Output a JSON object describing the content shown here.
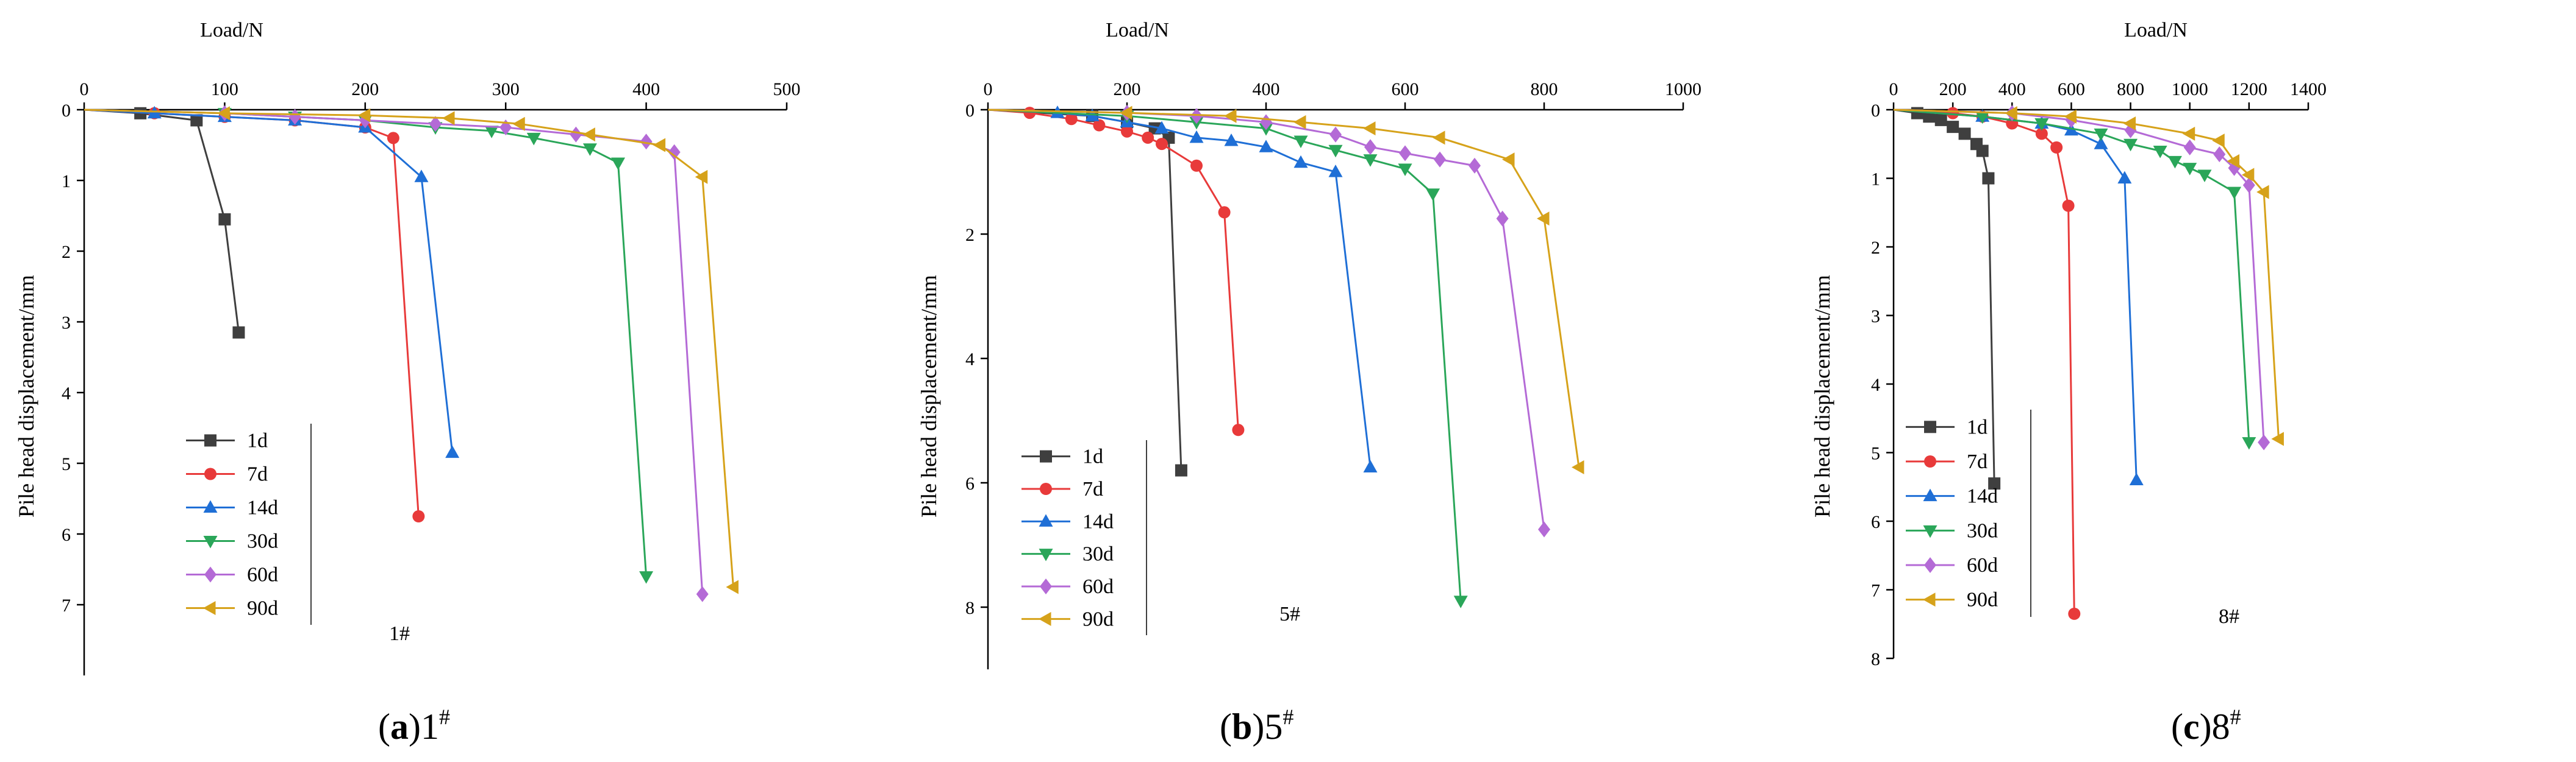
{
  "chart_data": [
    {
      "type": "line",
      "panel_label": "(a)",
      "panel_pile": "1",
      "title_sup": "#",
      "plot_marker": "1#",
      "xlabel": "Load/N",
      "ylabel": "Pile head displacement/mm",
      "xlim": [
        0,
        500
      ],
      "ylim": [
        0,
        8
      ],
      "xticks": [
        0,
        100,
        200,
        300,
        400,
        500
      ],
      "yticks": [
        0,
        1,
        2,
        3,
        4,
        5,
        6,
        7
      ],
      "y_inverted": true,
      "legend_position": "bottom-left",
      "series": [
        {
          "name": "1d",
          "x": [
            0,
            40,
            80,
            100,
            110
          ],
          "y": [
            0,
            0.05,
            0.15,
            1.55,
            3.15
          ]
        },
        {
          "name": "7d",
          "x": [
            0,
            50,
            100,
            150,
            200,
            220,
            238
          ],
          "y": [
            0,
            0.05,
            0.1,
            0.15,
            0.25,
            0.4,
            5.75
          ]
        },
        {
          "name": "14d",
          "x": [
            0,
            50,
            100,
            150,
            200,
            240,
            262
          ],
          "y": [
            0,
            0.05,
            0.1,
            0.15,
            0.25,
            0.95,
            4.85
          ]
        },
        {
          "name": "30d",
          "x": [
            0,
            100,
            150,
            200,
            250,
            290,
            320,
            360,
            380,
            400
          ],
          "y": [
            0,
            0.05,
            0.1,
            0.15,
            0.25,
            0.3,
            0.4,
            0.55,
            0.75,
            6.6
          ]
        },
        {
          "name": "60d",
          "x": [
            0,
            100,
            150,
            200,
            250,
            300,
            350,
            400,
            420,
            440
          ],
          "y": [
            0,
            0.05,
            0.1,
            0.15,
            0.2,
            0.25,
            0.35,
            0.45,
            0.6,
            6.85
          ]
        },
        {
          "name": "90d",
          "x": [
            0,
            100,
            200,
            260,
            310,
            360,
            410,
            440,
            462
          ],
          "y": [
            0,
            0.05,
            0.08,
            0.12,
            0.2,
            0.35,
            0.5,
            0.95,
            6.75
          ]
        }
      ]
    },
    {
      "type": "line",
      "panel_label": "(b)",
      "panel_pile": "5",
      "title_sup": "#",
      "plot_marker": "5#",
      "xlabel": "Load/N",
      "ylabel": "Pile head displacement/mm",
      "xlim": [
        0,
        1000
      ],
      "ylim": [
        0,
        9
      ],
      "xticks": [
        0,
        200,
        400,
        600,
        800,
        1000
      ],
      "yticks": [
        0,
        2,
        4,
        6,
        8
      ],
      "y_inverted": true,
      "legend_position": "bottom-left",
      "series": [
        {
          "name": "1d",
          "x": [
            0,
            150,
            200,
            240,
            260,
            278
          ],
          "y": [
            0,
            0.1,
            0.2,
            0.3,
            0.45,
            5.8
          ]
        },
        {
          "name": "7d",
          "x": [
            0,
            60,
            120,
            160,
            200,
            230,
            250,
            300,
            340,
            360
          ],
          "y": [
            0,
            0.05,
            0.15,
            0.25,
            0.35,
            0.45,
            0.55,
            0.9,
            1.65,
            5.15
          ]
        },
        {
          "name": "14d",
          "x": [
            0,
            100,
            150,
            200,
            250,
            300,
            350,
            400,
            450,
            500,
            550
          ],
          "y": [
            0,
            0.05,
            0.1,
            0.2,
            0.3,
            0.45,
            0.5,
            0.6,
            0.85,
            1.0,
            5.75
          ]
        },
        {
          "name": "30d",
          "x": [
            0,
            200,
            300,
            400,
            450,
            500,
            550,
            600,
            640,
            680
          ],
          "y": [
            0,
            0.1,
            0.2,
            0.3,
            0.5,
            0.65,
            0.8,
            0.95,
            1.35,
            7.9
          ]
        },
        {
          "name": "60d",
          "x": [
            0,
            200,
            300,
            400,
            500,
            550,
            600,
            650,
            700,
            740,
            800
          ],
          "y": [
            0,
            0.05,
            0.1,
            0.2,
            0.4,
            0.6,
            0.7,
            0.8,
            0.9,
            1.75,
            6.75
          ]
        },
        {
          "name": "90d",
          "x": [
            0,
            200,
            350,
            450,
            550,
            650,
            750,
            800,
            850
          ],
          "y": [
            0,
            0.05,
            0.1,
            0.2,
            0.3,
            0.45,
            0.8,
            1.75,
            5.75
          ]
        }
      ]
    },
    {
      "type": "line",
      "panel_label": "(c)",
      "panel_pile": "8",
      "title_sup": "#",
      "plot_marker": "8#",
      "xlabel": "Load/N",
      "ylabel": "Pile head displacement/mm",
      "xlim": [
        0,
        1400
      ],
      "ylim": [
        0,
        8
      ],
      "xticks": [
        0,
        200,
        400,
        600,
        800,
        1000,
        1200,
        1400
      ],
      "yticks": [
        0,
        1,
        2,
        3,
        4,
        5,
        6,
        7,
        8
      ],
      "y_inverted": true,
      "legend_position": "bottom-left",
      "series": [
        {
          "name": "1d",
          "x": [
            0,
            80,
            120,
            160,
            200,
            240,
            280,
            300,
            320,
            340
          ],
          "y": [
            0,
            0.05,
            0.1,
            0.15,
            0.25,
            0.35,
            0.5,
            0.6,
            1.0,
            5.45
          ]
        },
        {
          "name": "7d",
          "x": [
            0,
            200,
            300,
            400,
            500,
            550,
            590,
            610
          ],
          "y": [
            0,
            0.05,
            0.1,
            0.2,
            0.35,
            0.55,
            1.4,
            7.35
          ]
        },
        {
          "name": "14d",
          "x": [
            0,
            300,
            500,
            600,
            700,
            780,
            820
          ],
          "y": [
            0,
            0.1,
            0.2,
            0.3,
            0.5,
            1.0,
            5.4
          ]
        },
        {
          "name": "30d",
          "x": [
            0,
            300,
            500,
            700,
            800,
            900,
            950,
            1000,
            1050,
            1150,
            1200
          ],
          "y": [
            0,
            0.1,
            0.2,
            0.35,
            0.5,
            0.6,
            0.75,
            0.85,
            0.95,
            1.2,
            4.85
          ]
        },
        {
          "name": "60d",
          "x": [
            0,
            400,
            600,
            800,
            1000,
            1100,
            1150,
            1200,
            1250
          ],
          "y": [
            0,
            0.05,
            0.15,
            0.3,
            0.55,
            0.65,
            0.85,
            1.1,
            4.85
          ]
        },
        {
          "name": "90d",
          "x": [
            0,
            400,
            600,
            800,
            1000,
            1100,
            1150,
            1200,
            1250,
            1300
          ],
          "y": [
            0,
            0.05,
            0.1,
            0.2,
            0.35,
            0.45,
            0.75,
            0.95,
            1.2,
            4.8
          ]
        }
      ]
    }
  ],
  "series_styles": {
    "1d": {
      "color": "#3f3f3f",
      "marker": "square"
    },
    "7d": {
      "color": "#e83a3a",
      "marker": "circle"
    },
    "14d": {
      "color": "#1f6fd6",
      "marker": "triangle-up"
    },
    "30d": {
      "color": "#2aa659",
      "marker": "triangle-down"
    },
    "60d": {
      "color": "#b46ad6",
      "marker": "diamond"
    },
    "90d": {
      "color": "#d6a21a",
      "marker": "triangle-left"
    }
  }
}
